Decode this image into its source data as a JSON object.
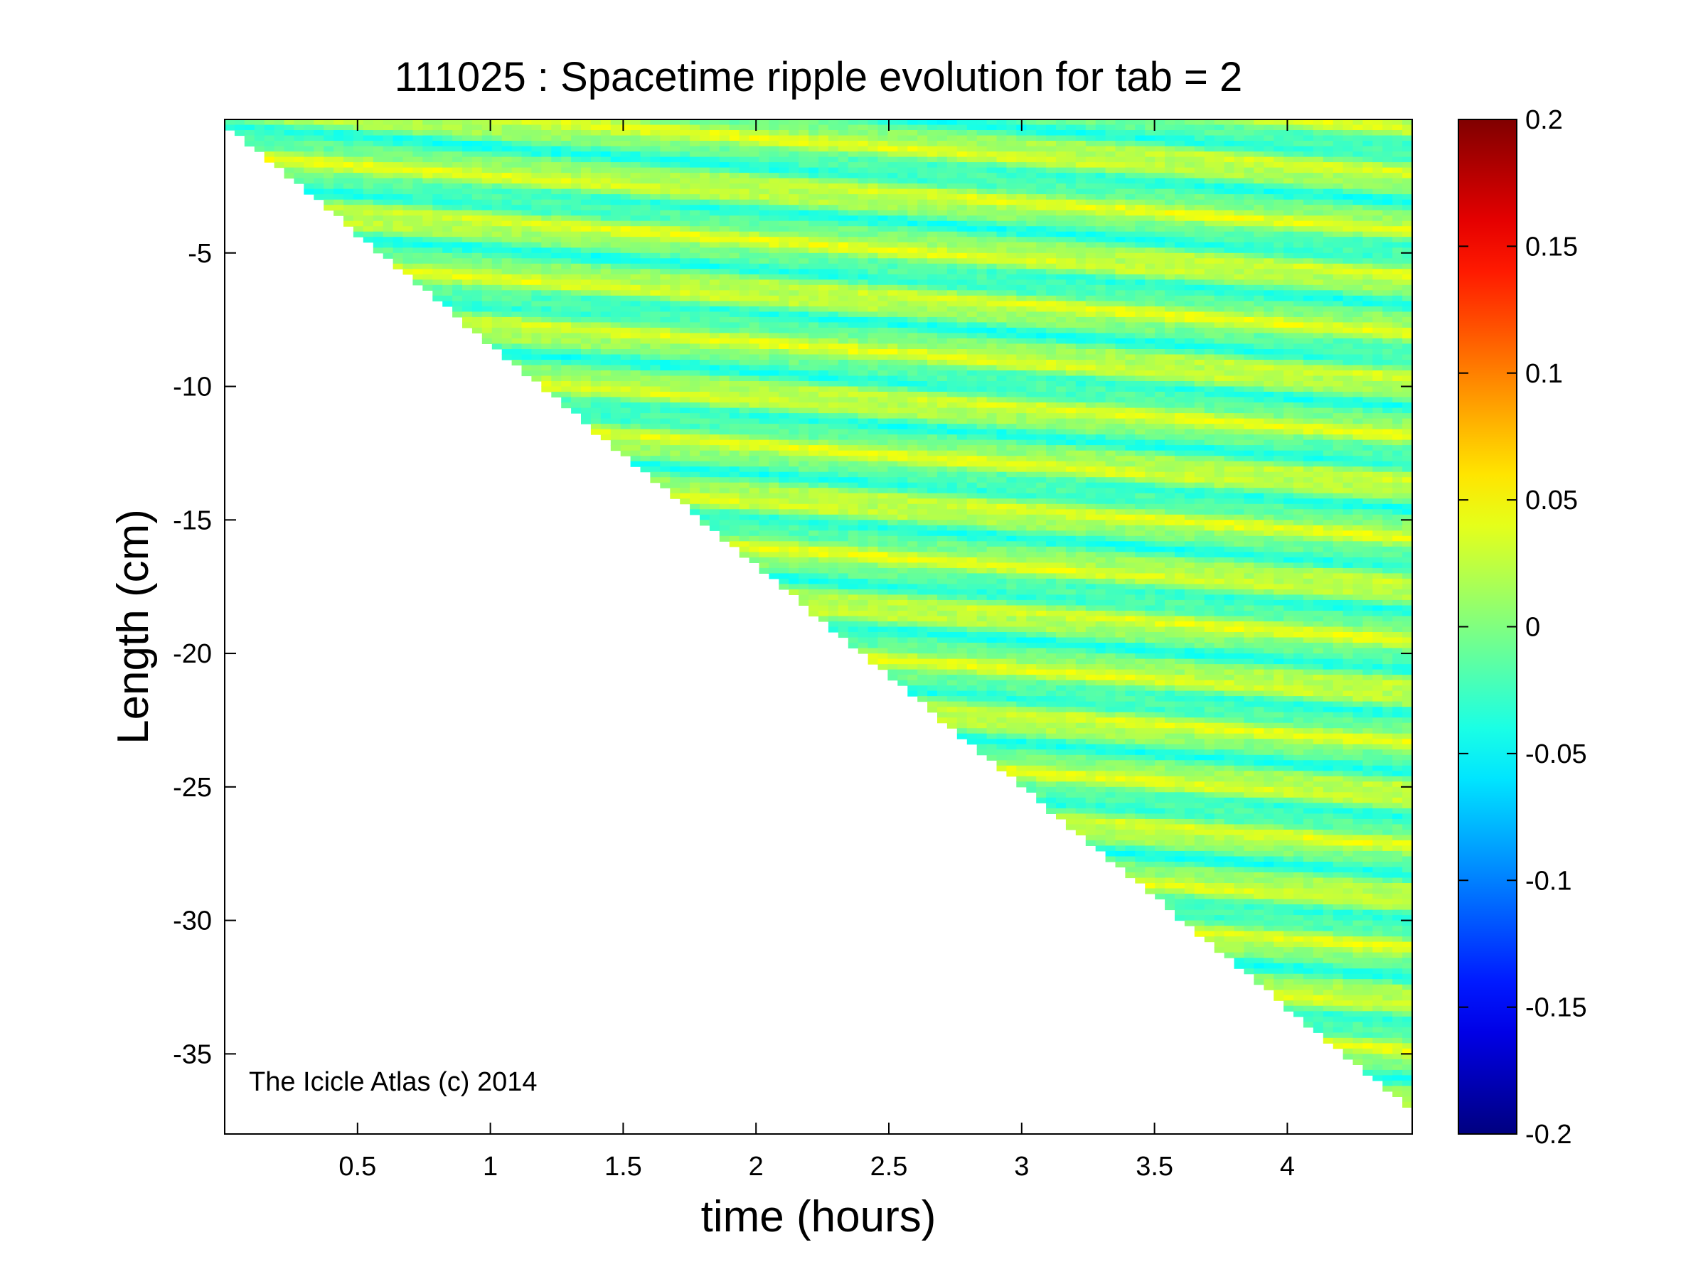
{
  "chart_data": {
    "type": "heatmap",
    "title": "111025 : Spacetime ripple evolution for tab = 2",
    "xlabel": "time (hours)",
    "ylabel": "Length (cm)",
    "xlim": [
      0,
      4.47
    ],
    "ylim": [
      -38,
      0
    ],
    "x_ticks": [
      0.5,
      1,
      1.5,
      2,
      2.5,
      3,
      3.5,
      4
    ],
    "x_tick_labels": [
      "0.5",
      "1",
      "1.5",
      "2",
      "2.5",
      "3",
      "3.5",
      "4"
    ],
    "y_ticks": [
      -5,
      -10,
      -15,
      -20,
      -25,
      -30,
      -35
    ],
    "y_tick_labels": [
      "-5",
      "-10",
      "-15",
      "-20",
      "-25",
      "-30",
      "-35"
    ],
    "colorbar": {
      "colormap": "jet",
      "clim": [
        -0.2,
        0.2
      ],
      "ticks": [
        0.2,
        0.15,
        0.1,
        0.05,
        0,
        -0.05,
        -0.1,
        -0.15,
        -0.2
      ],
      "tick_labels": [
        "0.2",
        "0.15",
        "0.1",
        "0.05",
        "0",
        "-0.05",
        "-0.1",
        "-0.15",
        "-0.2"
      ]
    },
    "grid": false,
    "data_boundary": {
      "description_free": true,
      "length_at_time": [
        [
          0,
          0
        ],
        [
          4.47,
          -37
        ]
      ]
    },
    "annotation": "The Icicle Atlas (c) 2014"
  }
}
